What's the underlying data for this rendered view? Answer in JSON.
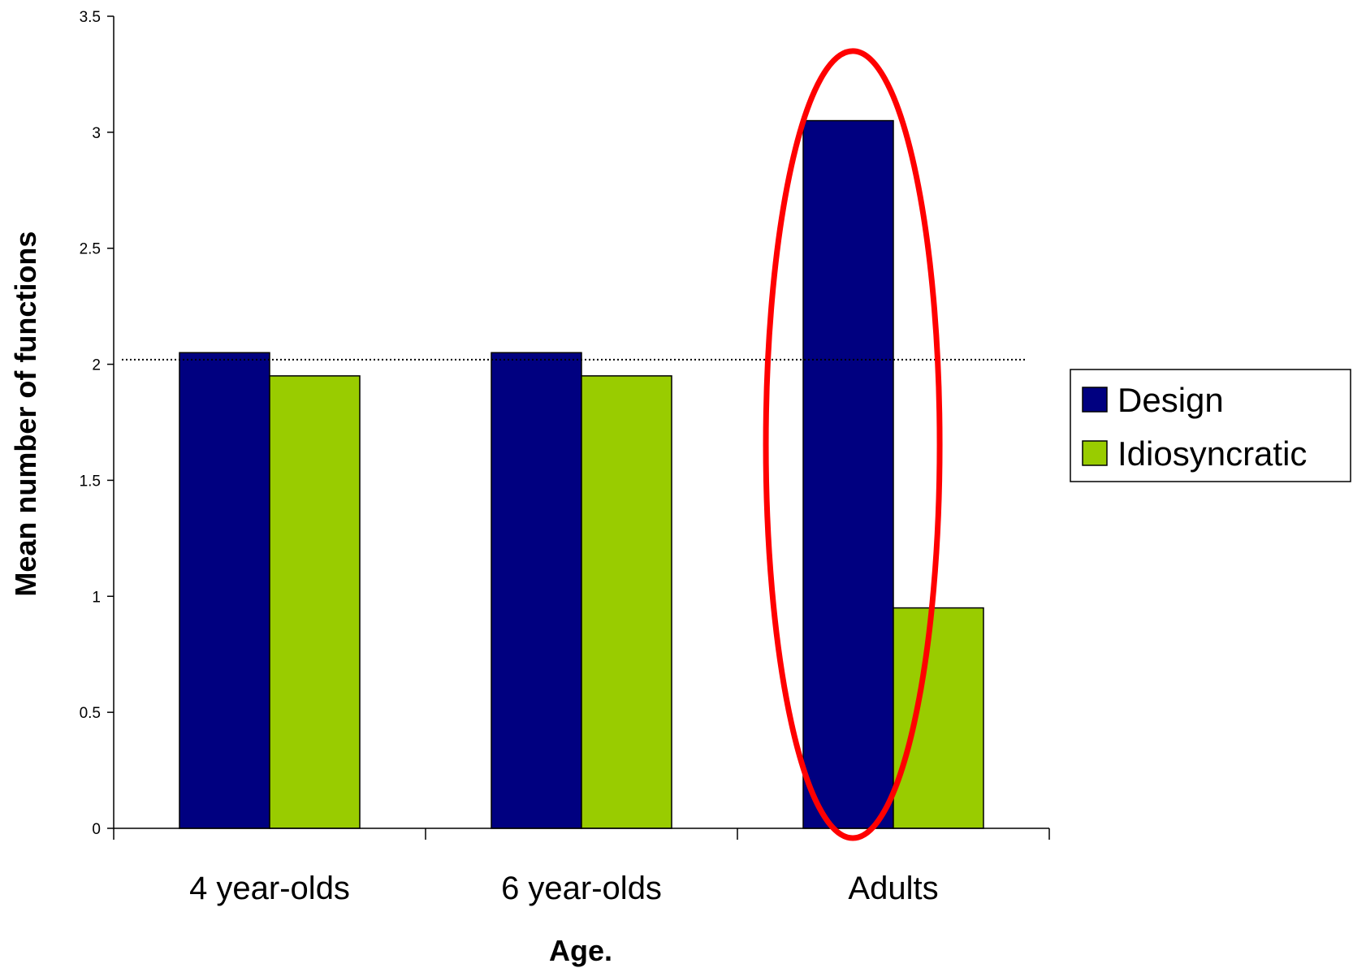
{
  "chart_data": {
    "type": "bar",
    "categories": [
      "4 year-olds",
      "6 year-olds",
      "Adults"
    ],
    "series": [
      {
        "name": "Design",
        "values": [
          2.05,
          2.05,
          3.05
        ],
        "color": "#000080"
      },
      {
        "name": "Idiosyncratic",
        "values": [
          1.95,
          1.95,
          0.95
        ],
        "color": "#99CC00"
      }
    ],
    "xlabel": "Age.",
    "ylabel": "Mean number of functions",
    "ylim": [
      0,
      3.5
    ],
    "yticks": [
      "0",
      "0.5",
      "1",
      "1.5",
      "2",
      "2.5",
      "3",
      "3.5"
    ],
    "reference_line": {
      "value": 2.02,
      "style": "dotted"
    },
    "highlight": {
      "category": "Adults",
      "shape": "ellipse",
      "color": "#FF0000"
    },
    "grid": false,
    "legend_position": "right"
  }
}
